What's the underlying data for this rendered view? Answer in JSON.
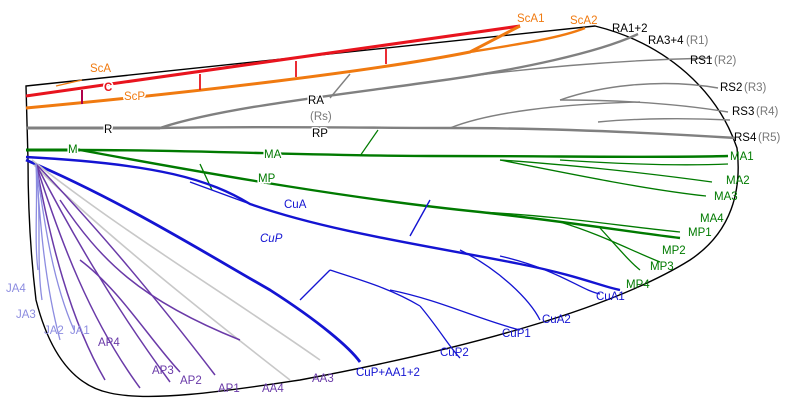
{
  "diagram": {
    "subject": "insect wing venation",
    "colors": {
      "costa": "#e8141e",
      "subcosta": "#f07a10",
      "radius": "#808080",
      "media_anterior": "#007a00",
      "media_posterior": "#1a8c1a",
      "cubitus": "#1414d2",
      "anal_posterior": "#6a3aa8",
      "jugal": "#8c8ce0",
      "anal_anterior": "#c8c8c8",
      "outline": "#000000"
    },
    "labels": {
      "sca_left": "ScA",
      "c": "C",
      "scp": "ScP",
      "r": "R",
      "ra": "RA",
      "rs_paren": "(Rs)",
      "rp": "RP",
      "m": "M",
      "ma": "MA",
      "mp": "MP",
      "cua": "CuA",
      "cup": "CuP",
      "sca1": "ScA1",
      "sca2": "ScA2",
      "ra12": "RA1+2",
      "ra34": "RA3+4",
      "r1": "(R1)",
      "rs1": "RS1",
      "r2": "(R2)",
      "rs2": "RS2",
      "r3": "(R3)",
      "rs3": "RS3",
      "r4": "(R4)",
      "rs4": "RS4",
      "r5": "(R5)",
      "ma1": "MA1",
      "ma2": "MA2",
      "ma3": "MA3",
      "ma4": "MA4",
      "mp1": "MP1",
      "mp2": "MP2",
      "mp3": "MP3",
      "mp4": "MP4",
      "cua1": "CuA1",
      "cua2": "CuA2",
      "cup1": "CuP1",
      "cup2": "CuP2",
      "cup_aa12": "CuP+AA1+2",
      "aa3": "AA3",
      "aa4": "AA4",
      "ap1": "AP1",
      "ap2": "AP2",
      "ap3": "AP3",
      "ap4": "AP4",
      "ja1": "JA1",
      "ja2": "JA2",
      "ja3": "JA3",
      "ja4": "JA4"
    }
  }
}
